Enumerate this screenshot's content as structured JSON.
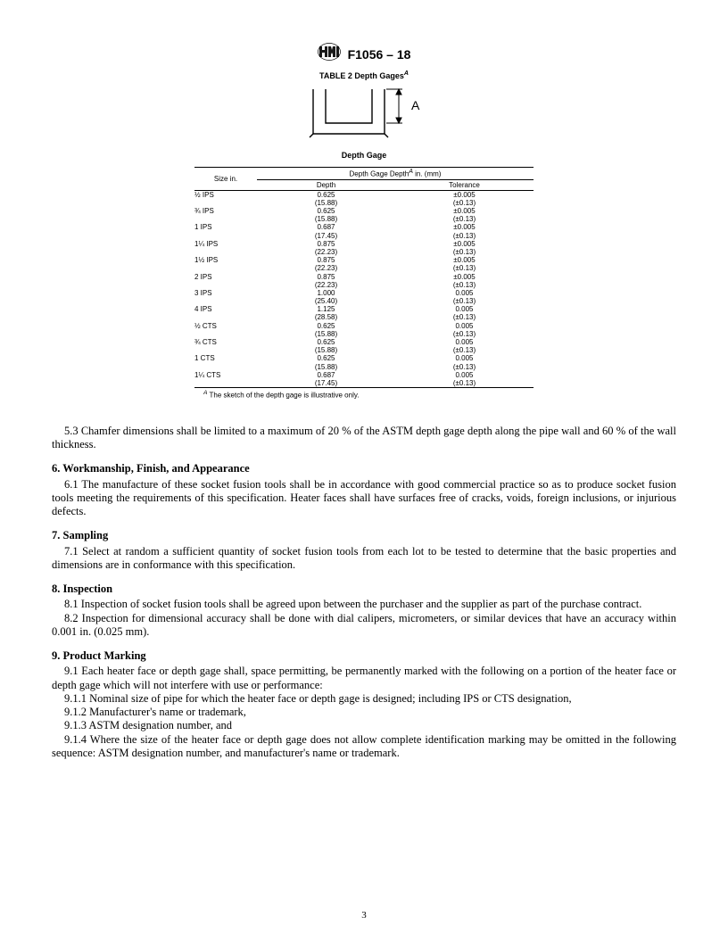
{
  "header": {
    "designation": "F1056 – 18"
  },
  "table": {
    "title": "TABLE 2 Depth Gages",
    "title_sup": "A",
    "figure_label_A": "A",
    "caption": "Depth Gage",
    "header_size": "Size in.",
    "header_group": "Depth Gage Depth",
    "header_group_sup": "A",
    "header_group_unit": " in. (mm)",
    "header_depth": "Depth",
    "header_tol": "Tolerance",
    "rows": [
      {
        "size": "½ IPS",
        "d": "0.625",
        "dm": "(15.88)",
        "t": "±0.005",
        "tm": "(±0.13)"
      },
      {
        "size": "¾ IPS",
        "d": "0.625",
        "dm": "(15.88)",
        "t": "±0.005",
        "tm": "(±0.13)"
      },
      {
        "size": "1 IPS",
        "d": "0.687",
        "dm": "(17.45)",
        "t": "±0.005",
        "tm": "(±0.13)"
      },
      {
        "size": "1¼ IPS",
        "d": "0.875",
        "dm": "(22.23)",
        "t": "±0.005",
        "tm": "(±0.13)"
      },
      {
        "size": "1½ IPS",
        "d": "0.875",
        "dm": "(22.23)",
        "t": "±0.005",
        "tm": "(±0.13)"
      },
      {
        "size": "2 IPS",
        "d": "0.875",
        "dm": "(22.23)",
        "t": "±0.005",
        "tm": "(±0.13)"
      },
      {
        "size": "3 IPS",
        "d": "1.000",
        "dm": "(25.40)",
        "t": "0.005",
        "tm": "(±0.13)"
      },
      {
        "size": "4 IPS",
        "d": "1.125",
        "dm": "(28.58)",
        "t": "0.005",
        "tm": "(±0.13)"
      },
      {
        "size": "½ CTS",
        "d": "0.625",
        "dm": "(15.88)",
        "t": "0.005",
        "tm": "(±0.13)"
      },
      {
        "size": "¾ CTS",
        "d": "0.625",
        "dm": "(15.88)",
        "t": "0.005",
        "tm": "(±0.13)"
      },
      {
        "size": "1 CTS",
        "d": "0.625",
        "dm": "(15.88)",
        "t": "0.005",
        "tm": "(±0.13)"
      },
      {
        "size": "1¼ CTS",
        "d": "0.687",
        "dm": "(17.45)",
        "t": "0.005",
        "tm": "(±0.13)"
      }
    ],
    "footnote_sup": "A",
    "footnote": " The sketch of the depth gage is illustrative only."
  },
  "sections": {
    "p5_3": "5.3 Chamfer dimensions shall be limited to a maximum of 20 % of the ASTM depth gage depth along the pipe wall and 60 % of the wall thickness.",
    "s6_head": "6.  Workmanship, Finish, and Appearance",
    "p6_1": "6.1 The manufacture of these socket fusion tools shall be in accordance with good commercial practice so as to produce socket fusion tools meeting the requirements of this specification. Heater faces shall have surfaces free of cracks, voids, foreign inclusions, or injurious defects.",
    "s7_head": "7.  Sampling",
    "p7_1": "7.1 Select at random a sufficient quantity of socket fusion tools from each lot to be tested to determine that the basic properties and dimensions are in conformance with this specification.",
    "s8_head": "8.  Inspection",
    "p8_1": "8.1 Inspection of socket fusion tools shall be agreed upon between the purchaser and the supplier as part of the purchase contract.",
    "p8_2": "8.2 Inspection for dimensional accuracy shall be done with dial calipers, micrometers, or similar devices that have an accuracy within 0.001 in. (0.025 mm).",
    "s9_head": "9.  Product Marking",
    "p9_1": "9.1 Each heater face or depth gage shall, space permitting, be permanently marked with the following on a portion of the heater face or depth gage which will not interfere with use or performance:",
    "p9_1_1": "9.1.1 Nominal size of pipe for which the heater face or depth gage is designed; including IPS or CTS designation,",
    "p9_1_2": "9.1.2 Manufacturer's name or trademark,",
    "p9_1_3": "9.1.3 ASTM designation number, and",
    "p9_1_4": "9.1.4 Where the size of the heater face or depth gage does not allow complete identification marking may be omitted in the following sequence: ASTM designation number, and manufacturer's name or trademark."
  },
  "page_number": "3",
  "figure": {
    "stroke": "#000000",
    "stroke_width": 1.4,
    "arrow_stroke_width": 1.0,
    "width": 150,
    "height": 68,
    "label_font": "Arial"
  }
}
